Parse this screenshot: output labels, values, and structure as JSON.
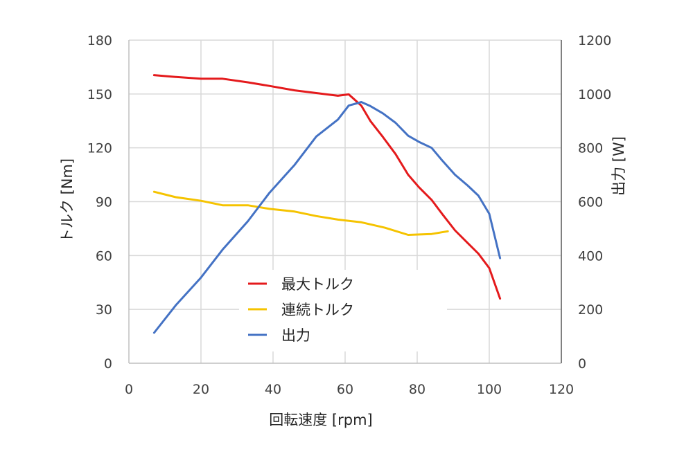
{
  "chart_data": {
    "type": "line",
    "xlabel": "回転速度 [rpm]",
    "ylabel_left": "トルク [Nm]",
    "ylabel_right": "出力 [W]",
    "xlim": [
      0,
      120
    ],
    "ylim_left": [
      0,
      180
    ],
    "ylim_right": [
      0,
      1200
    ],
    "x_ticks": [
      "0",
      "20",
      "40",
      "60",
      "80",
      "100",
      "120"
    ],
    "y_left_ticks": [
      "0",
      "30",
      "60",
      "90",
      "120",
      "150",
      "180"
    ],
    "y_right_ticks": [
      "0",
      "200",
      "400",
      "600",
      "800",
      "1000",
      "1200"
    ],
    "grid": true,
    "legend_position": "center-left",
    "series": [
      {
        "name": "最大トルク",
        "axis": "left",
        "color": "#e41a1c",
        "x": [
          7,
          13,
          20,
          26,
          33,
          39,
          46,
          52,
          58,
          61,
          64.5,
          67,
          70.5,
          74,
          77.5,
          80.5,
          84,
          87,
          90.5,
          94,
          97,
          100,
          103
        ],
        "y": [
          160.5,
          159.5,
          158.5,
          158.5,
          156.5,
          154.5,
          152,
          150.5,
          149,
          149.8,
          143.5,
          135,
          126,
          116.5,
          105,
          98,
          91,
          83,
          74,
          67,
          61,
          53,
          36
        ]
      },
      {
        "name": "連続トルク",
        "axis": "left",
        "color": "#f5c300",
        "x": [
          7,
          13,
          20,
          26,
          33,
          39,
          46,
          52,
          58,
          64.5,
          71,
          77.5,
          84,
          88.5
        ],
        "y": [
          95.5,
          92.5,
          90.5,
          88,
          88,
          86,
          84.5,
          82,
          80,
          78.5,
          75.5,
          71.5,
          72,
          73.5
        ]
      },
      {
        "name": "出力",
        "axis": "right",
        "color": "#4472c4",
        "x": [
          7,
          13,
          20,
          26,
          33,
          39,
          46,
          52,
          58,
          61,
          64.5,
          67,
          70.5,
          74,
          77.5,
          80.5,
          84,
          87,
          90.5,
          94,
          97,
          100,
          103
        ],
        "y": [
          113,
          215,
          318,
          422,
          527,
          633,
          737,
          842,
          905,
          957,
          970,
          955,
          928,
          893,
          845,
          822,
          800,
          752,
          700,
          660,
          622,
          555,
          390
        ]
      }
    ]
  }
}
